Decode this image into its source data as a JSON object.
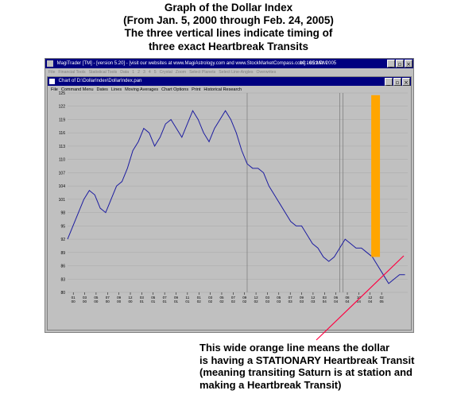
{
  "caption_top": [
    "Graph of the Dollar Index",
    "(From Jan. 5, 2000 through Feb. 24, 2005)",
    "The three vertical lines indicate timing of",
    "three exact Heartbreak Transits"
  ],
  "outer_window": {
    "title": "MagiTrader [TM] - [version 5.20] - [visit our websites at www.MagiAstrology.com and www.StockMarketCompass.com] - 05 Mar 2005",
    "clock": "10:16:22 PM",
    "buttons": {
      "minimize": "_",
      "maximize": "▫",
      "close": "×"
    },
    "menu": [
      "File",
      "Financial Tools",
      "Statistical Tools",
      "Data",
      "1",
      "2",
      "3",
      "4",
      "5",
      "Crystal",
      "Zoom",
      "Select Planets",
      "Select Line-Angles",
      "Overwrites"
    ]
  },
  "chart_window": {
    "title": "Chart of D:\\DollarIndex\\DollarIndex.pan",
    "buttons": {
      "minimize": "_",
      "maximize": "▫",
      "close": "×"
    },
    "menu": [
      "File",
      "Command Menu",
      "Dates",
      "Lines",
      "Moving Averages",
      "Chart Options",
      "Print",
      "Historical Research"
    ]
  },
  "caption_bottom": [
    "This wide orange line means the dollar",
    "is having a STATIONARY Heartbreak Transit",
    "(meaning transiting Saturn is at station and",
    "making a Heartbreak Transit)"
  ],
  "colors": {
    "series": "#1c1ca0",
    "stationary_band": "#ffa500",
    "arrow": "#ff0040",
    "plot_bg": "#c0c0c0",
    "titlebar": "#000080"
  },
  "chart_data": {
    "type": "line",
    "ylim": [
      80,
      125
    ],
    "yticks": [
      80,
      83,
      86,
      89,
      92,
      95,
      98,
      101,
      104,
      107,
      110,
      113,
      116,
      119,
      122,
      125
    ],
    "xlim": [
      0,
      62.5
    ],
    "xticks": [
      {
        "m": "01",
        "y": "00"
      },
      {
        "m": "03",
        "y": "00"
      },
      {
        "m": "05",
        "y": "00"
      },
      {
        "m": "07",
        "y": "00"
      },
      {
        "m": "09",
        "y": "00"
      },
      {
        "m": "12",
        "y": "00"
      },
      {
        "m": "03",
        "y": "01"
      },
      {
        "m": "05",
        "y": "01"
      },
      {
        "m": "07",
        "y": "01"
      },
      {
        "m": "09",
        "y": "01"
      },
      {
        "m": "11",
        "y": "01"
      },
      {
        "m": "01",
        "y": "02"
      },
      {
        "m": "03",
        "y": "02"
      },
      {
        "m": "05",
        "y": "02"
      },
      {
        "m": "07",
        "y": "02"
      },
      {
        "m": "09",
        "y": "02"
      },
      {
        "m": "12",
        "y": "02"
      },
      {
        "m": "03",
        "y": "03"
      },
      {
        "m": "05",
        "y": "03"
      },
      {
        "m": "07",
        "y": "03"
      },
      {
        "m": "09",
        "y": "03"
      },
      {
        "m": "12",
        "y": "03"
      },
      {
        "m": "03",
        "y": "04"
      },
      {
        "m": "06",
        "y": "04"
      },
      {
        "m": "08",
        "y": "04"
      },
      {
        "m": "10",
        "y": "04"
      },
      {
        "m": "12",
        "y": "04"
      },
      {
        "m": "02",
        "y": "05"
      }
    ],
    "series": [
      {
        "x": [
          0,
          1,
          2,
          3,
          4,
          5,
          6,
          7,
          8,
          9,
          10,
          11,
          12,
          13,
          14,
          15,
          16,
          17,
          18,
          19,
          20,
          21,
          22,
          23,
          24,
          25,
          26,
          27,
          28,
          29,
          30,
          31,
          32,
          33,
          34,
          35,
          36,
          37,
          38,
          39,
          40,
          41,
          42,
          43,
          44,
          45,
          46,
          47,
          48,
          49,
          50,
          51,
          52,
          53,
          54,
          55,
          56,
          57,
          58,
          59,
          60,
          61,
          62
        ],
        "y": [
          92,
          95,
          98,
          101,
          103,
          102,
          99,
          98,
          101,
          104,
          105,
          108,
          112,
          114,
          117,
          116,
          113,
          115,
          118,
          119,
          117,
          115,
          118,
          121,
          119,
          116,
          114,
          117,
          119,
          121,
          119,
          116,
          112,
          109,
          108,
          108,
          107,
          104,
          102,
          100,
          98,
          96,
          95,
          95,
          93,
          91,
          90,
          88,
          87,
          88,
          90,
          92,
          91,
          90,
          90,
          89,
          88,
          86,
          84,
          82,
          83,
          84,
          84
        ]
      }
    ],
    "vertical_lines_x": [
      33,
      50,
      50.6
    ],
    "stationary_band_x": [
      55.8,
      57.4
    ],
    "stationary_band_ytop": 124.5
  }
}
